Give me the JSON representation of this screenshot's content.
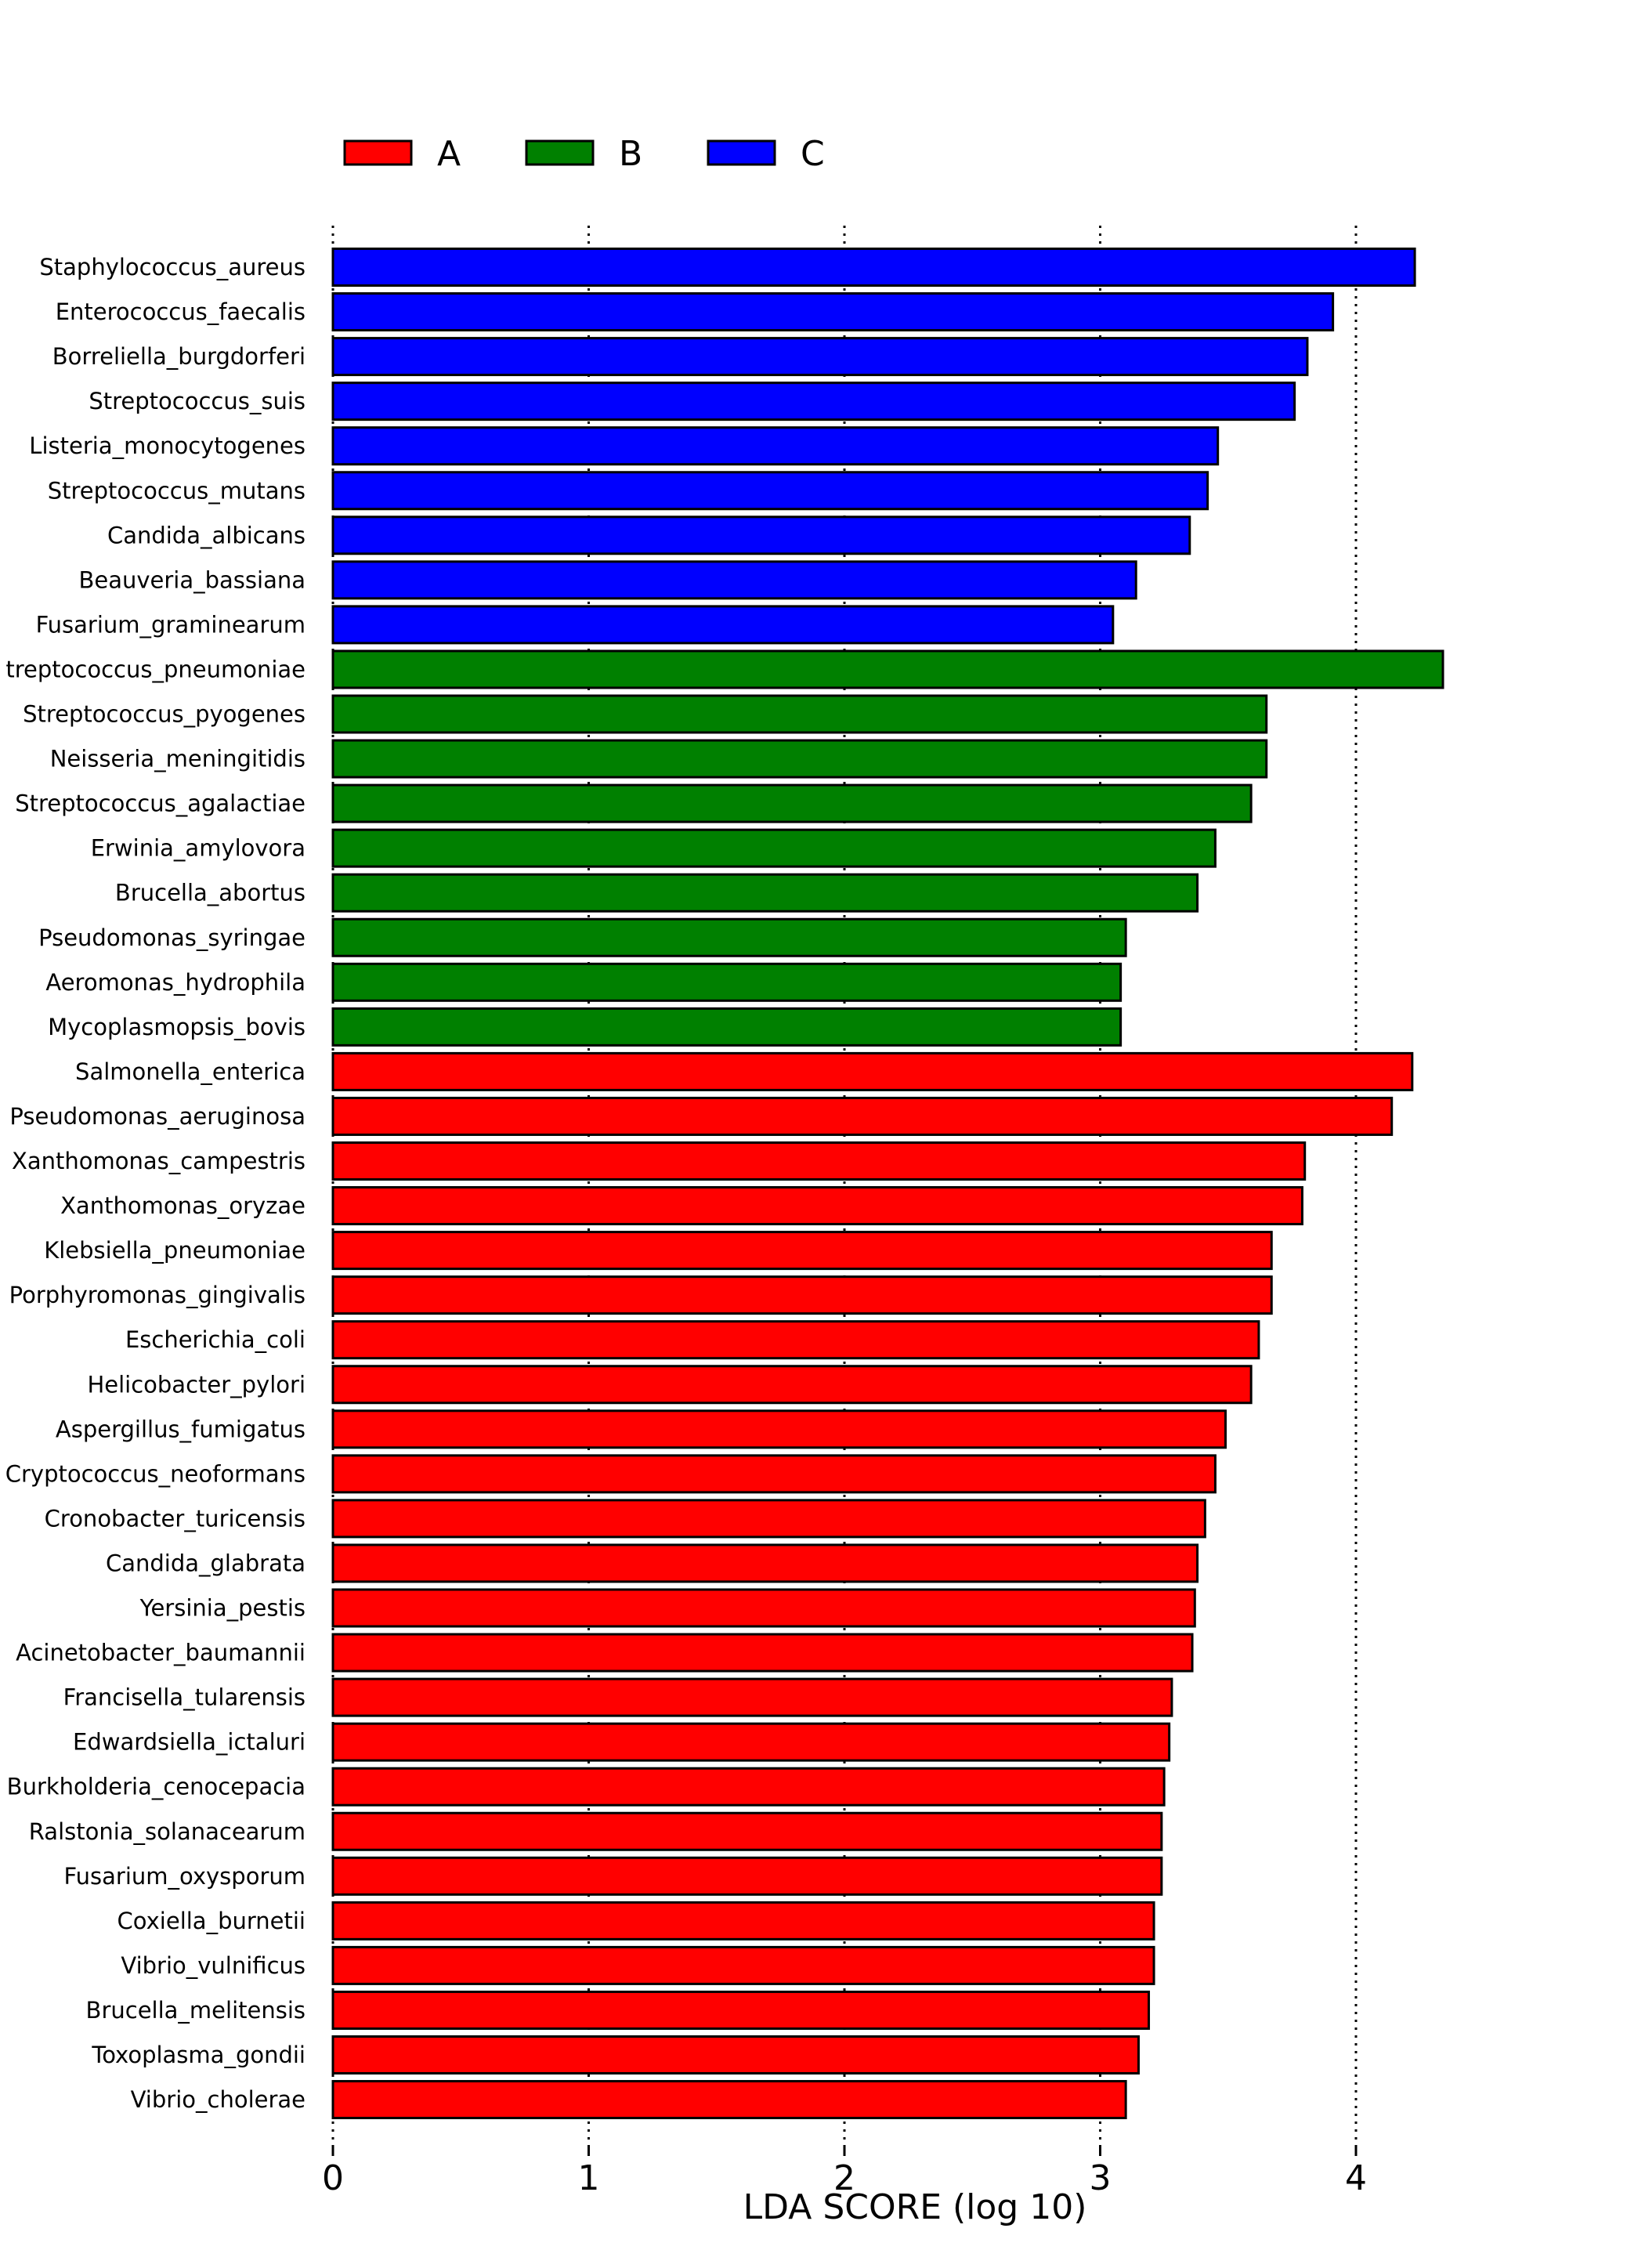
{
  "chart_data": {
    "type": "bar",
    "orientation": "horizontal",
    "xlabel": "LDA SCORE (log 10)",
    "xlim": [
      0,
      4.4
    ],
    "xticks": [
      0,
      1,
      2,
      3,
      4
    ],
    "grid": "vertical dotted lines at ticks",
    "legend_position": "top-left",
    "legend": [
      {
        "name": "A",
        "color": "#ff0000"
      },
      {
        "name": "B",
        "color": "#008000"
      },
      {
        "name": "C",
        "color": "#0000ff"
      }
    ],
    "bars": [
      {
        "label": "Staphylococcus_aureus",
        "group": "C",
        "value": 4.23
      },
      {
        "label": "Enterococcus_faecalis",
        "group": "C",
        "value": 3.91
      },
      {
        "label": "Borreliella_burgdorferi",
        "group": "C",
        "value": 3.81
      },
      {
        "label": "Streptococcus_suis",
        "group": "C",
        "value": 3.76
      },
      {
        "label": "Listeria_monocytogenes",
        "group": "C",
        "value": 3.46
      },
      {
        "label": "Streptococcus_mutans",
        "group": "C",
        "value": 3.42
      },
      {
        "label": "Candida_albicans",
        "group": "C",
        "value": 3.35
      },
      {
        "label": "Beauveria_bassiana",
        "group": "C",
        "value": 3.14
      },
      {
        "label": "Fusarium_graminearum",
        "group": "C",
        "value": 3.05
      },
      {
        "label": "treptococcus_pneumoniae",
        "group": "B",
        "value": 4.34
      },
      {
        "label": "Streptococcus_pyogenes",
        "group": "B",
        "value": 3.65
      },
      {
        "label": "Neisseria_meningitidis",
        "group": "B",
        "value": 3.65
      },
      {
        "label": "Streptococcus_agalactiae",
        "group": "B",
        "value": 3.59
      },
      {
        "label": "Erwinia_amylovora",
        "group": "B",
        "value": 3.45
      },
      {
        "label": "Brucella_abortus",
        "group": "B",
        "value": 3.38
      },
      {
        "label": "Pseudomonas_syringae",
        "group": "B",
        "value": 3.1
      },
      {
        "label": "Aeromonas_hydrophila",
        "group": "B",
        "value": 3.08
      },
      {
        "label": "Mycoplasmopsis_bovis",
        "group": "B",
        "value": 3.08
      },
      {
        "label": "Salmonella_enterica",
        "group": "A",
        "value": 4.22
      },
      {
        "label": "Pseudomonas_aeruginosa",
        "group": "A",
        "value": 4.14
      },
      {
        "label": "Xanthomonas_campestris",
        "group": "A",
        "value": 3.8
      },
      {
        "label": "Xanthomonas_oryzae",
        "group": "A",
        "value": 3.79
      },
      {
        "label": "Klebsiella_pneumoniae",
        "group": "A",
        "value": 3.67
      },
      {
        "label": "Porphyromonas_gingivalis",
        "group": "A",
        "value": 3.67
      },
      {
        "label": "Escherichia_coli",
        "group": "A",
        "value": 3.62
      },
      {
        "label": "Helicobacter_pylori",
        "group": "A",
        "value": 3.59
      },
      {
        "label": "Aspergillus_fumigatus",
        "group": "A",
        "value": 3.49
      },
      {
        "label": "Cryptococcus_neoformans",
        "group": "A",
        "value": 3.45
      },
      {
        "label": "Cronobacter_turicensis",
        "group": "A",
        "value": 3.41
      },
      {
        "label": "Candida_glabrata",
        "group": "A",
        "value": 3.38
      },
      {
        "label": "Yersinia_pestis",
        "group": "A",
        "value": 3.37
      },
      {
        "label": "Acinetobacter_baumannii",
        "group": "A",
        "value": 3.36
      },
      {
        "label": "Francisella_tularensis",
        "group": "A",
        "value": 3.28
      },
      {
        "label": "Edwardsiella_ictaluri",
        "group": "A",
        "value": 3.27
      },
      {
        "label": "Burkholderia_cenocepacia",
        "group": "A",
        "value": 3.25
      },
      {
        "label": "Ralstonia_solanacearum",
        "group": "A",
        "value": 3.24
      },
      {
        "label": "Fusarium_oxysporum",
        "group": "A",
        "value": 3.24
      },
      {
        "label": "Coxiella_burnetii",
        "group": "A",
        "value": 3.21
      },
      {
        "label": "Vibrio_vulnificus",
        "group": "A",
        "value": 3.21
      },
      {
        "label": "Brucella_melitensis",
        "group": "A",
        "value": 3.19
      },
      {
        "label": "Toxoplasma_gondii",
        "group": "A",
        "value": 3.15
      },
      {
        "label": "Vibrio_cholerae",
        "group": "A",
        "value": 3.1
      }
    ]
  }
}
